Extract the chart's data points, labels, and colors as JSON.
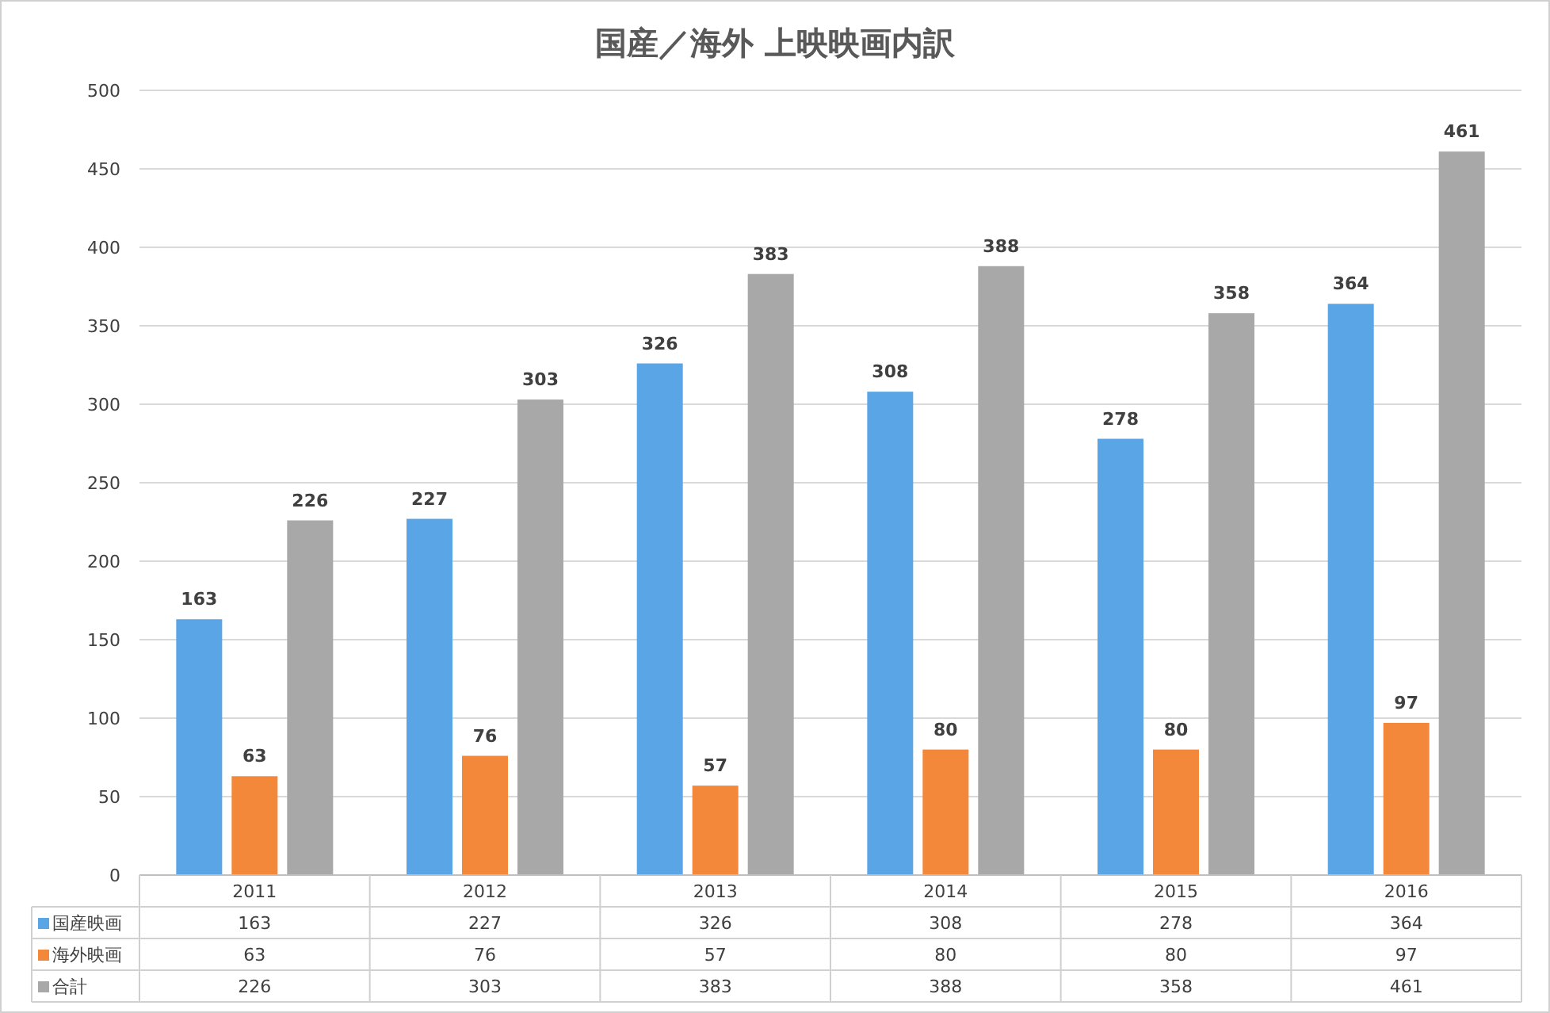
{
  "chart_data": {
    "type": "bar",
    "title": "国産／海外 上映映画内訳",
    "categories": [
      "2011",
      "2012",
      "2013",
      "2014",
      "2015",
      "2016"
    ],
    "series": [
      {
        "name": "国産映画",
        "color": "#5aa5e6",
        "values": [
          163,
          227,
          326,
          308,
          278,
          364
        ],
        "value_labels": [
          "163",
          "227",
          "326",
          "308",
          "278",
          "364"
        ]
      },
      {
        "name": "海外映画",
        "color": "#f4883a",
        "values": [
          63,
          76,
          57,
          80,
          80,
          97
        ],
        "value_labels": [
          "63",
          "76",
          "57",
          "80",
          "80",
          "97"
        ]
      },
      {
        "name": "合計",
        "color": "#a8a8a8",
        "values": [
          226,
          303,
          383,
          388,
          358,
          461
        ],
        "value_labels": [
          "226",
          "303",
          "383",
          "388",
          "358",
          "461"
        ]
      }
    ],
    "ylim": [
      0,
      500
    ],
    "yticks": [
      0,
      50,
      100,
      150,
      200,
      250,
      300,
      350,
      400,
      450,
      500
    ],
    "grid": "y",
    "legend": "bottom",
    "annotations": [
      "163",
      "227",
      "326",
      "308",
      "278",
      "364",
      "63",
      "76",
      "57",
      "80",
      "80",
      "97",
      "226",
      "303",
      "383",
      "388",
      "358",
      "461"
    ]
  }
}
